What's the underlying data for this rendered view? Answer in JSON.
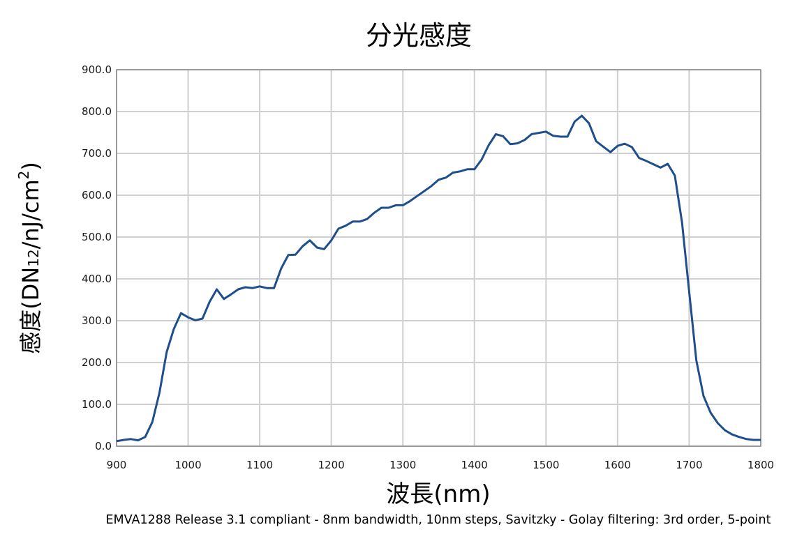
{
  "chart_data": {
    "type": "line",
    "title": "分光感度",
    "xlabel": "波長(nm)",
    "ylabel": {
      "prefix": "感度(DN",
      "sub": "12",
      "mid": "/nJ/cm",
      "sup": "2",
      "suffix": ")"
    },
    "footnote": "EMVA1288 Release 3.1 compliant - 8nm bandwidth, 10nm steps, Savitzky - Golay filtering: 3rd order, 5-point",
    "xlim": [
      900,
      1800
    ],
    "ylim": [
      0,
      900
    ],
    "grid": true,
    "x_ticks": [
      "900",
      "1000",
      "1100",
      "1200",
      "1300",
      "1400",
      "1500",
      "1600",
      "1700",
      "1800"
    ],
    "y_ticks": [
      "0.0",
      "100.0",
      "200.0",
      "300.0",
      "400.0",
      "500.0",
      "600.0",
      "700.0",
      "800.0",
      "900.0"
    ],
    "line_color": "#1f4e8c",
    "series": [
      {
        "x": [
          900,
          910,
          920,
          930,
          940,
          950,
          960,
          970,
          980,
          990,
          1000,
          1010,
          1020,
          1030,
          1040,
          1050,
          1060,
          1070,
          1080,
          1090,
          1100,
          1110,
          1120,
          1130,
          1140,
          1150,
          1160,
          1170,
          1180,
          1190,
          1200,
          1210,
          1220,
          1230,
          1240,
          1250,
          1260,
          1270,
          1280,
          1290,
          1300,
          1310,
          1320,
          1330,
          1340,
          1350,
          1360,
          1370,
          1380,
          1390,
          1400,
          1410,
          1420,
          1430,
          1440,
          1450,
          1460,
          1470,
          1480,
          1490,
          1500,
          1510,
          1520,
          1530,
          1540,
          1550,
          1560,
          1570,
          1580,
          1590,
          1600,
          1610,
          1620,
          1630,
          1640,
          1650,
          1660,
          1670,
          1680,
          1690,
          1700,
          1710,
          1720,
          1730,
          1740,
          1750,
          1760,
          1770,
          1780,
          1790,
          1800
        ],
        "values": [
          12,
          15,
          17,
          14,
          22,
          58,
          128,
          225,
          280,
          318,
          308,
          301,
          305,
          345,
          375,
          352,
          363,
          375,
          380,
          378,
          382,
          378,
          378,
          425,
          457,
          458,
          478,
          492,
          475,
          471,
          492,
          520,
          527,
          537,
          537,
          543,
          558,
          570,
          570,
          576,
          576,
          586,
          598,
          610,
          622,
          637,
          642,
          654,
          657,
          662,
          662,
          685,
          720,
          746,
          741,
          722,
          724,
          732,
          746,
          749,
          752,
          742,
          740,
          740,
          776,
          790,
          772,
          729,
          716,
          703,
          718,
          723,
          715,
          689,
          682,
          674,
          666,
          675,
          647,
          535,
          370,
          205,
          120,
          80,
          55,
          38,
          28,
          22,
          17,
          15,
          15
        ]
      }
    ]
  }
}
